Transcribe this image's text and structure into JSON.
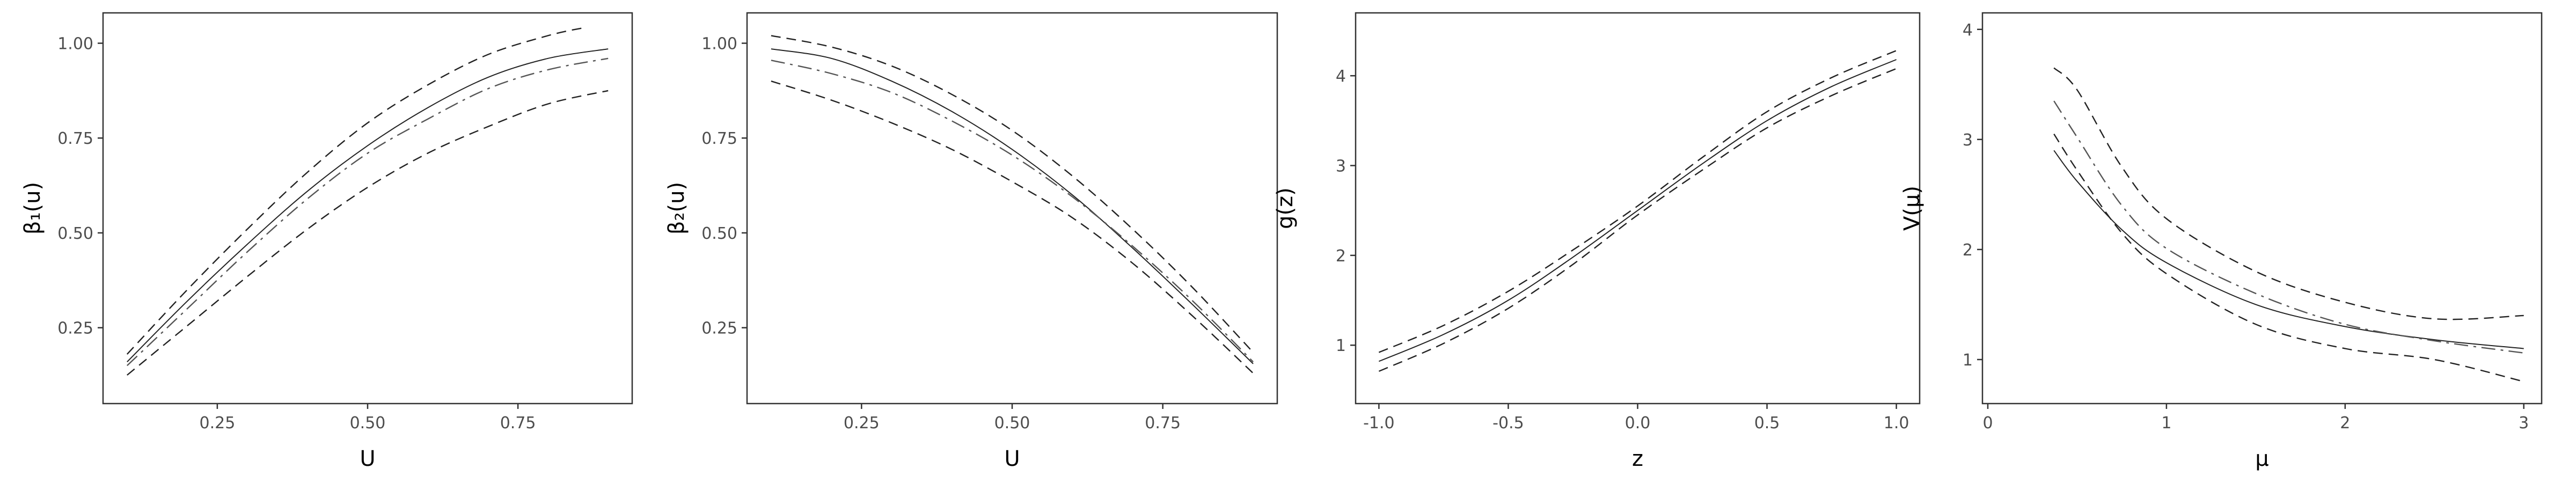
{
  "chart_data": [
    {
      "type": "line",
      "xlabel": "U",
      "ylabel": "β₁(u)",
      "xlim": [
        0.06,
        0.94
      ],
      "ylim": [
        0.05,
        1.08
      ],
      "xticks": [
        0.25,
        0.5,
        0.75
      ],
      "xtick_labels": [
        "0.25",
        "0.50",
        "0.75"
      ],
      "yticks": [
        0.25,
        0.5,
        0.75,
        1.0
      ],
      "ytick_labels": [
        "0.25",
        "0.50",
        "0.75",
        "1.00"
      ],
      "x": [
        0.1,
        0.2,
        0.3,
        0.4,
        0.5,
        0.6,
        0.7,
        0.8,
        0.9
      ],
      "series": [
        {
          "style": "solid",
          "values": [
            0.16,
            0.32,
            0.47,
            0.61,
            0.73,
            0.83,
            0.91,
            0.96,
            0.985
          ]
        },
        {
          "style": "dashdot",
          "values": [
            0.15,
            0.3,
            0.45,
            0.59,
            0.71,
            0.8,
            0.88,
            0.93,
            0.96
          ]
        },
        {
          "style": "dashed",
          "values": [
            0.18,
            0.35,
            0.51,
            0.66,
            0.79,
            0.89,
            0.97,
            1.02,
            1.055
          ],
          "x_end": 0.86
        },
        {
          "style": "dashed",
          "values": [
            0.125,
            0.255,
            0.385,
            0.51,
            0.62,
            0.71,
            0.78,
            0.84,
            0.875
          ]
        }
      ]
    },
    {
      "type": "line",
      "xlabel": "U",
      "ylabel": "β₂(u)",
      "xlim": [
        0.06,
        0.94
      ],
      "ylim": [
        0.05,
        1.08
      ],
      "xticks": [
        0.25,
        0.5,
        0.75
      ],
      "xtick_labels": [
        "0.25",
        "0.50",
        "0.75"
      ],
      "yticks": [
        0.25,
        0.5,
        0.75,
        1.0
      ],
      "ytick_labels": [
        "0.25",
        "0.50",
        "0.75",
        "1.00"
      ],
      "x": [
        0.1,
        0.2,
        0.3,
        0.4,
        0.5,
        0.6,
        0.7,
        0.8,
        0.9
      ],
      "series": [
        {
          "style": "solid",
          "values": [
            0.985,
            0.96,
            0.9,
            0.82,
            0.72,
            0.6,
            0.46,
            0.31,
            0.155
          ]
        },
        {
          "style": "dashdot",
          "values": [
            0.955,
            0.92,
            0.87,
            0.795,
            0.705,
            0.595,
            0.465,
            0.32,
            0.16
          ]
        },
        {
          "style": "dashed",
          "values": [
            1.02,
            0.99,
            0.94,
            0.865,
            0.77,
            0.65,
            0.51,
            0.355,
            0.185
          ]
        },
        {
          "style": "dashed",
          "values": [
            0.9,
            0.85,
            0.79,
            0.72,
            0.635,
            0.54,
            0.42,
            0.28,
            0.13
          ]
        }
      ]
    },
    {
      "type": "line",
      "xlabel": "z",
      "ylabel": "g(z)",
      "xlim": [
        -1.09,
        1.09
      ],
      "ylim": [
        0.35,
        4.7
      ],
      "xticks": [
        -1,
        -0.5,
        0,
        0.5,
        1
      ],
      "xtick_labels": [
        "-1.0",
        "-0.5",
        "0.0",
        "0.5",
        "1.0"
      ],
      "yticks": [
        1,
        2,
        3,
        4
      ],
      "ytick_labels": [
        "1",
        "2",
        "3",
        "4"
      ],
      "x": [
        -1,
        -0.75,
        -0.5,
        -0.25,
        0,
        0.25,
        0.5,
        0.75,
        1
      ],
      "series": [
        {
          "style": "solid",
          "values": [
            0.82,
            1.12,
            1.5,
            1.98,
            2.5,
            3.02,
            3.5,
            3.88,
            4.18
          ]
        },
        {
          "style": "dashed",
          "values": [
            0.92,
            1.22,
            1.6,
            2.06,
            2.55,
            3.09,
            3.6,
            3.98,
            4.28
          ]
        },
        {
          "style": "dashed",
          "values": [
            0.71,
            1.02,
            1.41,
            1.9,
            2.45,
            2.95,
            3.42,
            3.78,
            4.08
          ]
        }
      ]
    },
    {
      "type": "line",
      "xlabel": "μ",
      "ylabel": "V(μ)",
      "xlim": [
        -0.03,
        3.1
      ],
      "ylim": [
        0.6,
        4.15
      ],
      "xticks": [
        0,
        1,
        2,
        3
      ],
      "xtick_labels": [
        "0",
        "1",
        "2",
        "3"
      ],
      "yticks": [
        1,
        2,
        3,
        4
      ],
      "ytick_labels": [
        "1",
        "2",
        "3",
        "4"
      ],
      "x": [
        0.37,
        0.5,
        0.75,
        1.0,
        1.5,
        2.0,
        2.5,
        3.0
      ],
      "series": [
        {
          "style": "solid",
          "values": [
            2.9,
            2.62,
            2.18,
            1.88,
            1.5,
            1.3,
            1.18,
            1.1
          ]
        },
        {
          "style": "dashdot",
          "values": [
            3.35,
            3.02,
            2.4,
            2.01,
            1.6,
            1.32,
            1.17,
            1.06
          ]
        },
        {
          "style": "dashed",
          "values": [
            3.65,
            3.45,
            2.75,
            2.28,
            1.8,
            1.52,
            1.37,
            1.4
          ]
        },
        {
          "style": "dashed",
          "values": [
            3.05,
            2.72,
            2.15,
            1.78,
            1.32,
            1.1,
            1.0,
            0.8
          ]
        }
      ]
    }
  ]
}
